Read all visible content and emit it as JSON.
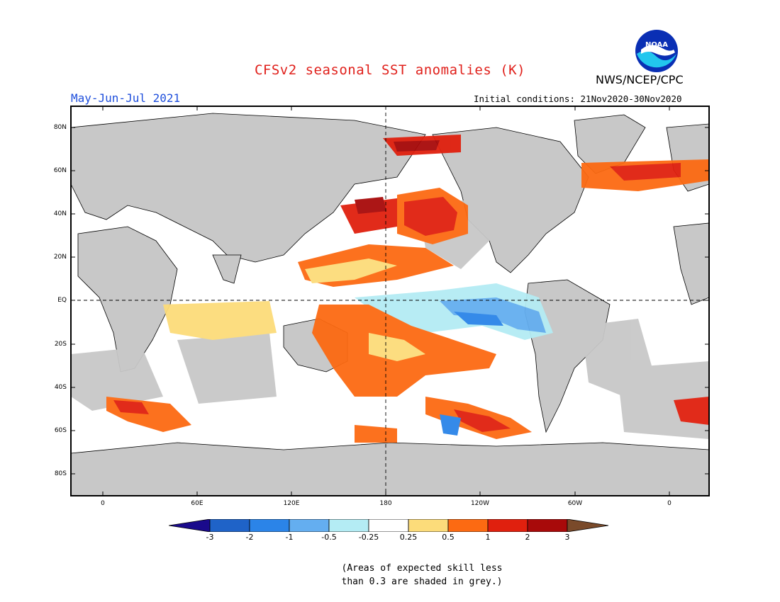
{
  "header": {
    "title": "CFSv2 seasonal SST anomalies (K)",
    "season": "May-Jun-Jul 2021",
    "organization": "NWS/NCEP/CPC",
    "initial_conditions": "Initial conditions: 21Nov2020-30Nov2020",
    "logo_text": "NOAA"
  },
  "map": {
    "lat_labels": [
      "80N",
      "60N",
      "40N",
      "20N",
      "EQ",
      "20S",
      "40S",
      "60S",
      "80S"
    ],
    "lon_labels": [
      "0",
      "60E",
      "120E",
      "180",
      "120W",
      "60W",
      "0"
    ],
    "land_color": "#c8c8c8",
    "grey_shading_meaning": "Areas of expected skill less than 0.3 are shaded in grey."
  },
  "colorbar": {
    "ticks": [
      "-3",
      "-2",
      "-1",
      "-0.5",
      "-0.25",
      "0.25",
      "0.5",
      "1",
      "2",
      "3"
    ],
    "colors": [
      "#1a0a8c",
      "#1f63c8",
      "#2b84e8",
      "#64aef0",
      "#b4ecf4",
      "#ffffff",
      "#fcdc7a",
      "#fc6a12",
      "#e0200e",
      "#a80a0a",
      "#7a4a2a"
    ]
  },
  "note": {
    "line1": "(Areas of expected skill less",
    "line2": "than 0.3 are shaded in grey.)"
  }
}
